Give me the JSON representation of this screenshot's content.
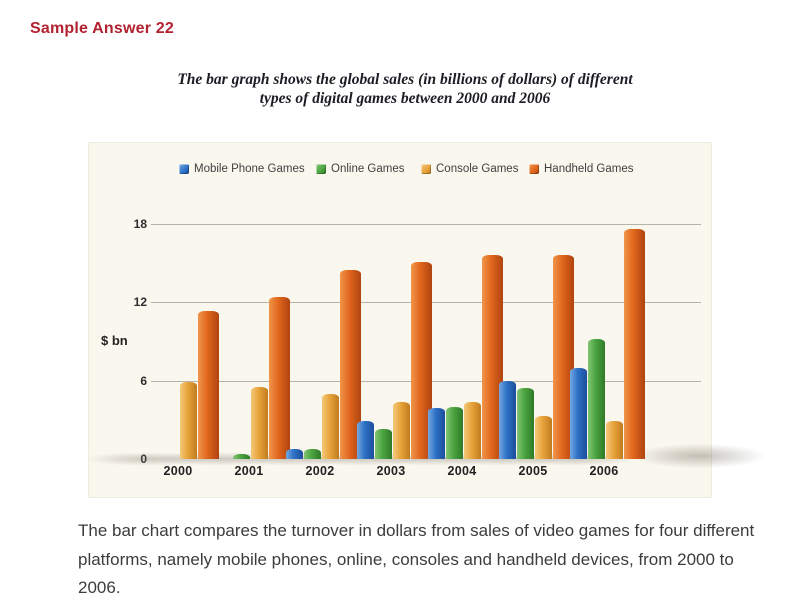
{
  "page": {
    "heading": "Sample Answer 22",
    "caption_line1": "The bar graph shows the global sales (in billions of dollars) of different",
    "caption_line2": "types of digital games between 2000 and 2006",
    "body_paragraph": "The bar chart compares the turnover in dollars from sales of video games for four different platforms, namely mobile phones, online, consoles and handheld devices, from 2000 to 2006."
  },
  "colors": {
    "heading_red": "#B22230",
    "chart_background": "#FAF7EE",
    "gridline": "#B7B3A9",
    "axis_text": "#2E2E2E"
  },
  "chart_data": {
    "type": "bar",
    "title": "The bar graph shows the global sales (in billions of dollars) of different types of digital games between 2000 and 2006",
    "xlabel": "",
    "ylabel": "$ bn",
    "ylim": [
      0,
      18
    ],
    "yticks": [
      0,
      6,
      12,
      18
    ],
    "grid": true,
    "legend_position": "top",
    "categories": [
      "2000",
      "2001",
      "2002",
      "2003",
      "2004",
      "2005",
      "2006"
    ],
    "series": [
      {
        "name": "Mobile Phone Games",
        "color": "#2E71C5",
        "color_light": "#74A9E2",
        "color_dark": "#1C4E9B",
        "values": [
          0,
          0,
          0.8,
          2.9,
          3.9,
          6.0,
          7.0
        ]
      },
      {
        "name": "Online Games",
        "color": "#4BA43F",
        "color_light": "#82C474",
        "color_dark": "#2F7A28",
        "values": [
          0,
          0.4,
          0.8,
          2.3,
          4.0,
          5.4,
          9.2
        ]
      },
      {
        "name": "Console Games",
        "color": "#E8A33B",
        "color_light": "#F4C97A",
        "color_dark": "#C07C1E",
        "values": [
          5.9,
          5.5,
          5.0,
          4.4,
          4.4,
          3.3,
          2.9
        ]
      },
      {
        "name": "Handheld Games",
        "color": "#E0661C",
        "color_light": "#F0964A",
        "color_dark": "#B04410",
        "values": [
          11.3,
          12.4,
          14.5,
          15.1,
          15.6,
          15.6,
          17.6
        ]
      }
    ]
  }
}
